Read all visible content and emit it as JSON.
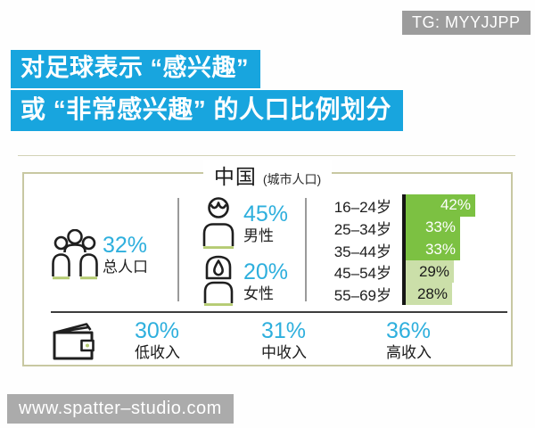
{
  "badge": {
    "text": "TG: MYYJJPP"
  },
  "title": {
    "line1": "对足球表示 “感兴趣”",
    "line2": "或 “非常感兴趣” 的人口比例划分"
  },
  "panel": {
    "heading": "中国",
    "heading_note": "(城市人口)",
    "total": {
      "value": "32%",
      "label": "总人口"
    },
    "male": {
      "value": "45%",
      "label": "男性"
    },
    "female": {
      "value": "20%",
      "label": "女性"
    }
  },
  "chart_data": {
    "type": "bar",
    "orientation": "horizontal",
    "title": "对足球表示“感兴趣”或“非常感兴趣”的人口比例划分",
    "region": "中国 (城市人口)",
    "total_population_pct": 32,
    "gender": {
      "male_pct": 45,
      "female_pct": 20
    },
    "age": {
      "categories": [
        "16–24岁",
        "25–34岁",
        "35–44岁",
        "45–54岁",
        "55–69岁"
      ],
      "values": [
        42,
        33,
        33,
        29,
        28
      ],
      "value_labels": [
        "42%",
        "33%",
        "33%",
        "29%",
        "28%"
      ],
      "bar_colors": [
        "#7cc142",
        "#7cc142",
        "#7cc142",
        "#cbdfa9",
        "#cbdfa9"
      ],
      "text_colors": [
        "#ffffff",
        "#ffffff",
        "#ffffff",
        "#1a1a1a",
        "#1a1a1a"
      ],
      "xlim": [
        0,
        45
      ],
      "grid": false,
      "legend": "none"
    },
    "income": {
      "categories": [
        "低收入",
        "中收入",
        "高收入"
      ],
      "values": [
        30,
        31,
        36
      ]
    }
  },
  "income": {
    "items": [
      {
        "value": "30%",
        "label": "低收入"
      },
      {
        "value": "31%",
        "label": "中收入"
      },
      {
        "value": "36%",
        "label": "高收入"
      }
    ]
  },
  "footer": {
    "url": "www.spatter–studio.com"
  },
  "colors": {
    "headline_bg": "#18a5de",
    "accent_cyan": "#2eafdd",
    "bar_green_dark": "#7cc142",
    "bar_green_light": "#cbdfa9",
    "icon_underline_green": "#b5cb72",
    "panel_border": "#c8c8a2",
    "badge_gray": "#9c9c9c",
    "footer_gray": "#ababab"
  }
}
